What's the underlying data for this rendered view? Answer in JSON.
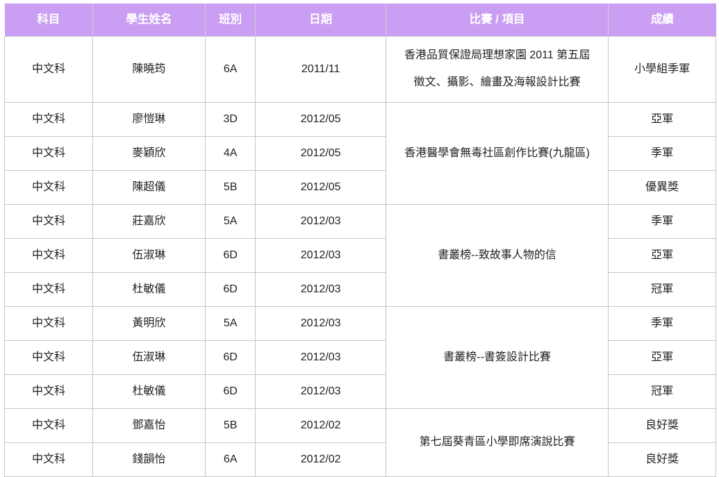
{
  "table": {
    "header": {
      "subject": "科目",
      "student_name": "學生姓名",
      "class": "班別",
      "date": "日期",
      "competition": "比賽 / 項目",
      "result": "成績"
    },
    "rows": [
      {
        "subject": "中文科",
        "name": "陳曉筠",
        "class": "6A",
        "date": "2011/11",
        "competition_line1": "香港品質保證局理想家園 2011 第五屆",
        "competition_line2": "徵文、攝影、繪畫及海報設計比賽",
        "result": "小學組季軍"
      },
      {
        "subject": "中文科",
        "name": "廖愷琳",
        "class": "3D",
        "date": "2012/05",
        "competition": "香港醫學會無毒社區創作比賽(九龍區)",
        "result": "亞軍"
      },
      {
        "subject": "中文科",
        "name": "麥穎欣",
        "class": "4A",
        "date": "2012/05",
        "result": "季軍"
      },
      {
        "subject": "中文科",
        "name": "陳超儀",
        "class": "5B",
        "date": "2012/05",
        "result": "優異獎"
      },
      {
        "subject": "中文科",
        "name": "莊嘉欣",
        "class": "5A",
        "date": "2012/03",
        "competition": "書叢榜--致故事人物的信",
        "result": "季軍"
      },
      {
        "subject": "中文科",
        "name": "伍淑琳",
        "class": "6D",
        "date": "2012/03",
        "result": "亞軍"
      },
      {
        "subject": "中文科",
        "name": "杜敏儀",
        "class": "6D",
        "date": "2012/03",
        "result": "冠軍"
      },
      {
        "subject": "中文科",
        "name": "黃明欣",
        "class": "5A",
        "date": "2012/03",
        "competition": "書叢榜--書簽設計比賽",
        "result": "季軍"
      },
      {
        "subject": "中文科",
        "name": "伍淑琳",
        "class": "6D",
        "date": "2012/03",
        "result": "亞軍"
      },
      {
        "subject": "中文科",
        "name": "杜敏儀",
        "class": "6D",
        "date": "2012/03",
        "result": "冠軍"
      },
      {
        "subject": "中文科",
        "name": "鄧嘉怡",
        "class": "5B",
        "date": "2012/02",
        "competition": "第七屆葵青區小學即席演說比賽",
        "result": "良好獎"
      },
      {
        "subject": "中文科",
        "name": "錢韻怡",
        "class": "6A",
        "date": "2012/02",
        "result": "良好獎"
      }
    ],
    "colors": {
      "header_bg": "#ca9ef2",
      "header_text": "#ffffff",
      "border": "#c6c6c6",
      "body_text": "#1f1f1f"
    }
  }
}
